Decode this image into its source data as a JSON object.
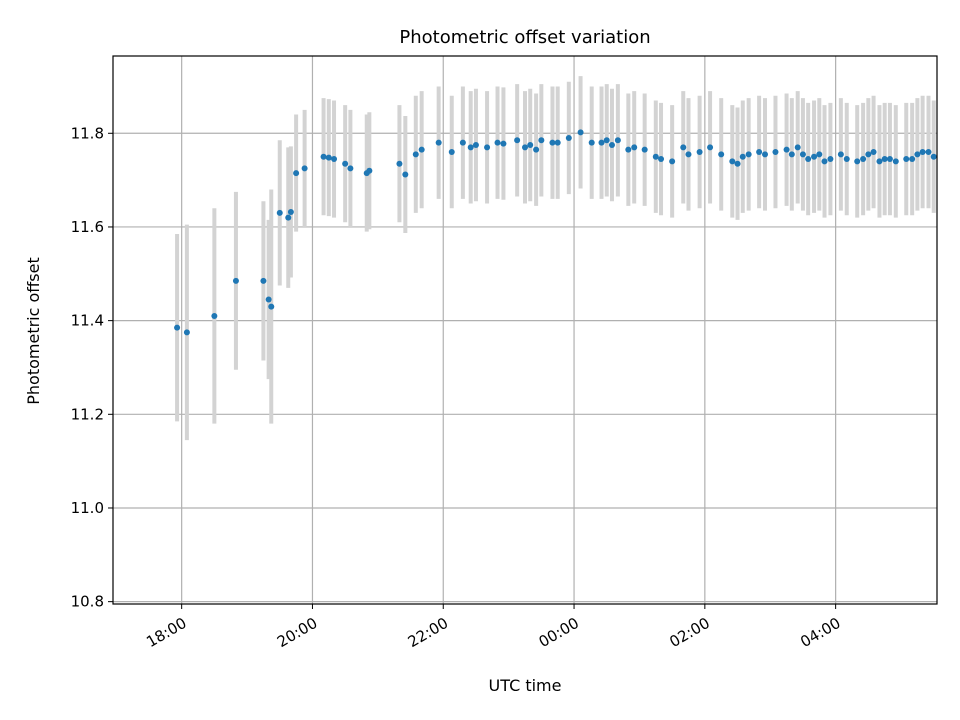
{
  "chart_data": {
    "type": "scatter",
    "title": "Photometric offset variation",
    "xlabel": "UTC time",
    "ylabel": "Photometric offset",
    "x_tick_labels": [
      "18:00",
      "20:00",
      "22:00",
      "00:00",
      "02:00",
      "04:00"
    ],
    "x_tick_hours": [
      18,
      20,
      22,
      24,
      26,
      28
    ],
    "y_ticks": [
      10.8,
      11.0,
      11.2,
      11.4,
      11.6,
      11.8
    ],
    "y_tick_labels": [
      "10.8",
      "11.0",
      "11.2",
      "11.4",
      "11.6",
      "11.8"
    ],
    "xlim_hours": [
      16.95,
      29.55
    ],
    "ylim": [
      10.795,
      11.965
    ],
    "grid": true,
    "colors": {
      "point": "#1f77b4",
      "errorbar": "#d3d3d3",
      "grid": "#b0b0b0"
    },
    "series": [
      {
        "x_hours": [
          17.93,
          18.08,
          18.5,
          18.83,
          19.25,
          19.33,
          19.37,
          19.5,
          19.63,
          19.67,
          19.75,
          19.88,
          20.17,
          20.25,
          20.33,
          20.5,
          20.58,
          20.83,
          20.87,
          21.33,
          21.42,
          21.58,
          21.67,
          21.93,
          22.13,
          22.3,
          22.42,
          22.5,
          22.67,
          22.83,
          22.92,
          23.13,
          23.25,
          23.33,
          23.42,
          23.5,
          23.67,
          23.75,
          23.92,
          24.1,
          24.27,
          24.42,
          24.5,
          24.58,
          24.67,
          24.83,
          24.92,
          25.08,
          25.25,
          25.33,
          25.5,
          25.67,
          25.75,
          25.92,
          26.08,
          26.25,
          26.42,
          26.5,
          26.58,
          26.67,
          26.83,
          26.92,
          27.08,
          27.25,
          27.33,
          27.42,
          27.5,
          27.58,
          27.67,
          27.75,
          27.83,
          27.92,
          28.08,
          28.17,
          28.33,
          28.42,
          28.5,
          28.58,
          28.67,
          28.75,
          28.83,
          28.92,
          29.08,
          29.17,
          29.25,
          29.33,
          29.42,
          29.5
        ],
        "y": [
          11.385,
          11.375,
          11.41,
          11.485,
          11.485,
          11.445,
          11.43,
          11.63,
          11.62,
          11.632,
          11.715,
          11.725,
          11.75,
          11.748,
          11.745,
          11.735,
          11.725,
          11.715,
          11.72,
          11.735,
          11.712,
          11.755,
          11.765,
          11.78,
          11.76,
          11.78,
          11.77,
          11.775,
          11.77,
          11.78,
          11.778,
          11.785,
          11.77,
          11.775,
          11.765,
          11.785,
          11.78,
          11.78,
          11.79,
          11.802,
          11.78,
          11.78,
          11.785,
          11.775,
          11.785,
          11.765,
          11.77,
          11.765,
          11.75,
          11.745,
          11.74,
          11.77,
          11.755,
          11.76,
          11.77,
          11.755,
          11.74,
          11.735,
          11.75,
          11.755,
          11.76,
          11.755,
          11.76,
          11.765,
          11.755,
          11.77,
          11.755,
          11.745,
          11.75,
          11.755,
          11.74,
          11.745,
          11.755,
          11.745,
          11.74,
          11.745,
          11.755,
          11.76,
          11.74,
          11.745,
          11.745,
          11.74,
          11.745,
          11.745,
          11.755,
          11.76,
          11.76,
          11.75
        ],
        "err": [
          0.2,
          0.23,
          0.23,
          0.19,
          0.17,
          0.17,
          0.25,
          0.155,
          0.15,
          0.14,
          0.125,
          0.125,
          0.125,
          0.125,
          0.125,
          0.125,
          0.125,
          0.125,
          0.125,
          0.125,
          0.125,
          0.125,
          0.125,
          0.12,
          0.12,
          0.12,
          0.12,
          0.12,
          0.12,
          0.12,
          0.12,
          0.12,
          0.12,
          0.12,
          0.12,
          0.12,
          0.12,
          0.12,
          0.12,
          0.12,
          0.12,
          0.12,
          0.12,
          0.12,
          0.12,
          0.12,
          0.12,
          0.12,
          0.12,
          0.12,
          0.12,
          0.12,
          0.12,
          0.12,
          0.12,
          0.12,
          0.12,
          0.12,
          0.12,
          0.12,
          0.12,
          0.12,
          0.12,
          0.12,
          0.12,
          0.12,
          0.12,
          0.12,
          0.12,
          0.12,
          0.12,
          0.12,
          0.12,
          0.12,
          0.12,
          0.12,
          0.12,
          0.12,
          0.12,
          0.12,
          0.12,
          0.12,
          0.12,
          0.12,
          0.12,
          0.12,
          0.12,
          0.12
        ]
      }
    ]
  }
}
